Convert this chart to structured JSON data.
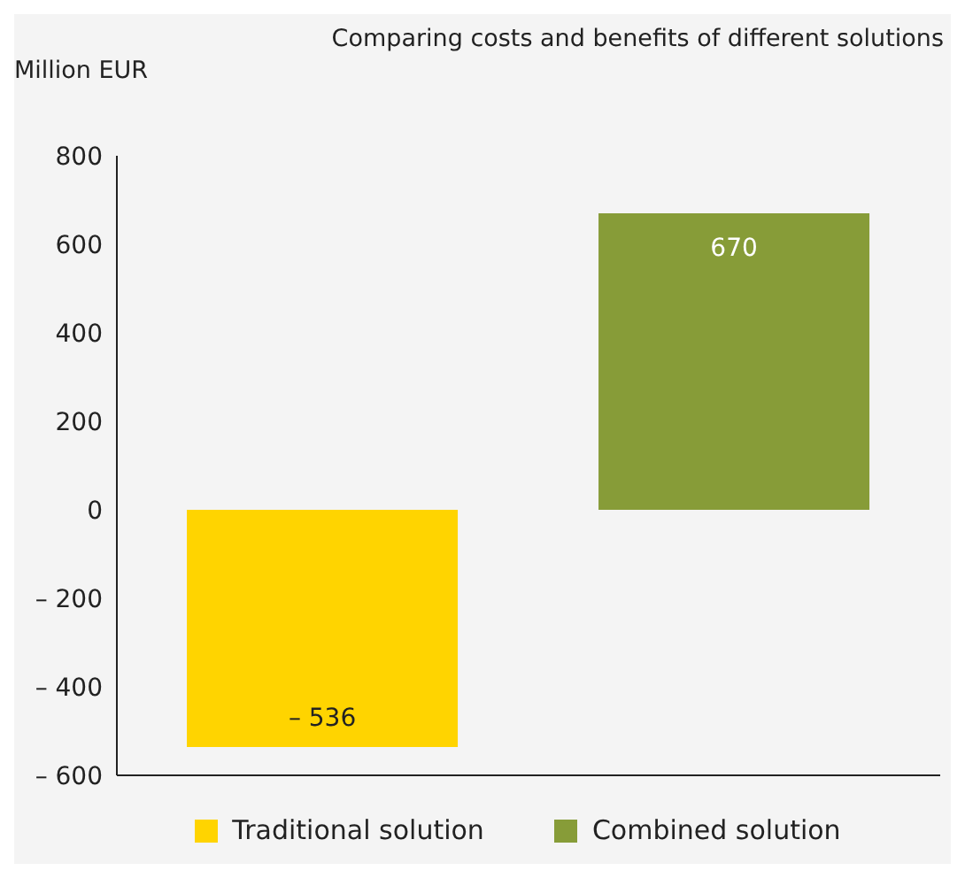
{
  "chart_data": {
    "type": "bar",
    "title": "Comparing costs and benefits of different solutions",
    "ylabel": "Million EUR",
    "categories": [
      null,
      null
    ],
    "series": [
      {
        "name": "Traditional solution",
        "color": "#ffd400",
        "values": [
          -536,
          null
        ],
        "value_labels": [
          "– 536",
          null
        ]
      },
      {
        "name": "Combined solution",
        "color": "#879c38",
        "values": [
          null,
          670
        ],
        "value_labels": [
          null,
          "670"
        ]
      }
    ],
    "ylim": [
      -600,
      800
    ],
    "yticks": [
      {
        "value": -600,
        "label": "– 600"
      },
      {
        "value": -400,
        "label": "– 400"
      },
      {
        "value": -200,
        "label": "– 200"
      },
      0,
      200,
      400,
      600,
      800
    ],
    "grid": false,
    "legend": "bottom"
  }
}
